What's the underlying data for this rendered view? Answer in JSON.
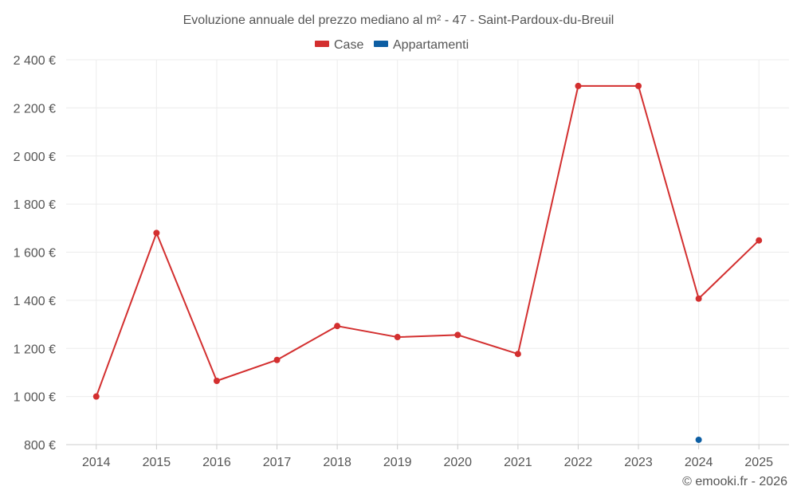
{
  "chart_data": {
    "type": "line",
    "title": "Evoluzione annuale del prezzo mediano al m² - 47 - Saint-Pardoux-du-Breuil",
    "categories": [
      "2014",
      "2015",
      "2016",
      "2017",
      "2018",
      "2019",
      "2020",
      "2021",
      "2022",
      "2023",
      "2024",
      "2025"
    ],
    "ylim": [
      800,
      2400
    ],
    "yticks": [
      800,
      1000,
      1200,
      1400,
      1600,
      1800,
      2000,
      2200,
      2400
    ],
    "ytick_labels": [
      "800 €",
      "1 000 €",
      "1 200 €",
      "1 400 €",
      "1 600 €",
      "1 800 €",
      "2 000 €",
      "2 200 €",
      "2 400 €"
    ],
    "series": [
      {
        "name": "Case",
        "color": "#d32f2f",
        "values": [
          1000,
          1680,
          1065,
          1152,
          1293,
          1247,
          1256,
          1177,
          2291,
          2291,
          1407,
          1649
        ]
      },
      {
        "name": "Appartamenti",
        "color": "#0d5ea3",
        "values": [
          null,
          null,
          null,
          null,
          null,
          null,
          null,
          null,
          null,
          null,
          820,
          null
        ]
      }
    ],
    "grid": true,
    "legend_position": "top-center"
  },
  "credit": "© emooki.fr - 2026"
}
